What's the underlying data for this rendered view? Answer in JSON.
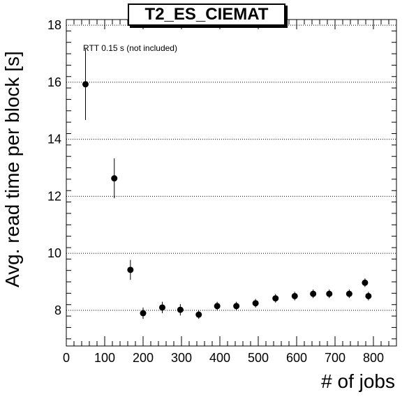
{
  "chart_data": {
    "type": "scatter",
    "title": "T2_ES_CIEMAT",
    "xlabel": "# of jobs",
    "ylabel": "Avg. read time per block [s]",
    "annotation": "RTT 0.15 s (not included)",
    "xlim": [
      0,
      860
    ],
    "ylim": [
      6.75,
      18.2
    ],
    "x_ticks": [
      0,
      100,
      200,
      300,
      400,
      500,
      600,
      700,
      800
    ],
    "y_ticks": [
      8,
      10,
      12,
      14,
      16,
      18
    ],
    "grid": "horizontal dotted at major y ticks",
    "points": [
      {
        "x": 50,
        "y": 15.93,
        "err": 1.25
      },
      {
        "x": 125,
        "y": 12.63,
        "err": 0.7
      },
      {
        "x": 167,
        "y": 9.42,
        "err": 0.35
      },
      {
        "x": 200,
        "y": 7.9,
        "err": 0.2
      },
      {
        "x": 250,
        "y": 8.1,
        "err": 0.2
      },
      {
        "x": 297,
        "y": 8.02,
        "err": 0.2
      },
      {
        "x": 345,
        "y": 7.85,
        "err": 0.15
      },
      {
        "x": 393,
        "y": 8.15,
        "err": 0.15
      },
      {
        "x": 443,
        "y": 8.15,
        "err": 0.15
      },
      {
        "x": 493,
        "y": 8.25,
        "err": 0.15
      },
      {
        "x": 545,
        "y": 8.42,
        "err": 0.15
      },
      {
        "x": 595,
        "y": 8.5,
        "err": 0.15
      },
      {
        "x": 643,
        "y": 8.58,
        "err": 0.15
      },
      {
        "x": 685,
        "y": 8.58,
        "err": 0.15
      },
      {
        "x": 737,
        "y": 8.58,
        "err": 0.15
      },
      {
        "x": 778,
        "y": 8.97,
        "err": 0.15
      },
      {
        "x": 787,
        "y": 8.5,
        "err": 0.15
      }
    ]
  }
}
